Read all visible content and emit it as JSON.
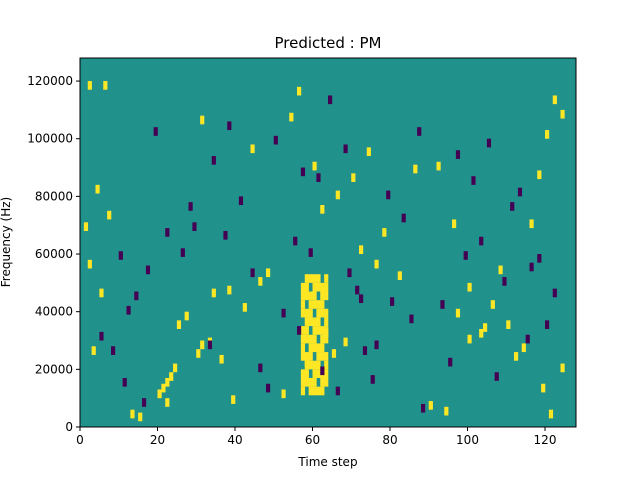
{
  "chart_data": {
    "type": "heatmap",
    "title": "Predicted : PM",
    "xlabel": "Time step",
    "ylabel": "Frequency (Hz)",
    "xlim": [
      0,
      128
    ],
    "ylim": [
      0,
      128000
    ],
    "xticks": [
      0,
      20,
      40,
      60,
      80,
      100,
      120
    ],
    "yticks": [
      0,
      20000,
      40000,
      60000,
      80000,
      100000,
      120000
    ],
    "colormap": "viridis",
    "grid": false,
    "colors": {
      "background": "#21918c",
      "high": "#fde725",
      "low": "#440154"
    },
    "grid_size": [
      128,
      128
    ],
    "cells_high": [
      [
        2,
        119
      ],
      [
        6,
        119
      ],
      [
        44,
        97
      ],
      [
        4,
        83
      ],
      [
        7,
        74
      ],
      [
        1,
        70
      ],
      [
        2,
        57
      ],
      [
        5,
        47
      ],
      [
        3,
        27
      ],
      [
        13,
        5
      ],
      [
        15,
        4
      ],
      [
        22,
        9
      ],
      [
        25,
        36
      ],
      [
        27,
        39
      ],
      [
        31,
        107
      ],
      [
        34,
        47
      ],
      [
        38,
        48
      ],
      [
        42,
        42
      ],
      [
        46,
        51
      ],
      [
        48,
        54
      ],
      [
        54,
        108
      ],
      [
        56,
        117
      ],
      [
        60,
        91
      ],
      [
        62,
        76
      ],
      [
        66,
        81
      ],
      [
        70,
        87
      ],
      [
        76,
        57
      ],
      [
        78,
        68
      ],
      [
        86,
        90
      ],
      [
        92,
        91
      ],
      [
        96,
        71
      ],
      [
        100,
        49
      ],
      [
        104,
        35
      ],
      [
        108,
        55
      ],
      [
        112,
        25
      ],
      [
        116,
        71
      ],
      [
        118,
        88
      ],
      [
        120,
        102
      ],
      [
        122,
        114
      ],
      [
        124,
        109
      ],
      [
        20,
        12
      ],
      [
        21,
        14
      ],
      [
        22,
        16
      ],
      [
        23,
        18
      ],
      [
        24,
        21
      ],
      [
        30,
        26
      ],
      [
        31,
        29
      ],
      [
        33,
        30
      ],
      [
        36,
        24
      ],
      [
        39,
        10
      ],
      [
        52,
        12
      ],
      [
        58,
        23
      ],
      [
        60,
        28
      ],
      [
        63,
        33
      ],
      [
        65,
        26
      ],
      [
        68,
        30
      ],
      [
        72,
        62
      ],
      [
        74,
        96
      ],
      [
        82,
        53
      ],
      [
        90,
        8
      ],
      [
        94,
        6
      ],
      [
        97,
        40
      ],
      [
        100,
        31
      ],
      [
        103,
        33
      ],
      [
        106,
        43
      ],
      [
        110,
        36
      ],
      [
        114,
        28
      ],
      [
        119,
        14
      ],
      [
        121,
        5
      ],
      [
        124,
        21
      ]
    ],
    "cells_low": [
      [
        5,
        32
      ],
      [
        8,
        27
      ],
      [
        11,
        16
      ],
      [
        12,
        41
      ],
      [
        14,
        46
      ],
      [
        17,
        55
      ],
      [
        22,
        68
      ],
      [
        28,
        77
      ],
      [
        34,
        93
      ],
      [
        38,
        105
      ],
      [
        41,
        79
      ],
      [
        44,
        54
      ],
      [
        46,
        21
      ],
      [
        48,
        14
      ],
      [
        52,
        40
      ],
      [
        55,
        65
      ],
      [
        57,
        89
      ],
      [
        61,
        87
      ],
      [
        64,
        114
      ],
      [
        68,
        97
      ],
      [
        71,
        48
      ],
      [
        73,
        27
      ],
      [
        75,
        17
      ],
      [
        79,
        81
      ],
      [
        83,
        73
      ],
      [
        85,
        38
      ],
      [
        88,
        7
      ],
      [
        93,
        43
      ],
      [
        95,
        23
      ],
      [
        99,
        60
      ],
      [
        101,
        86
      ],
      [
        105,
        99
      ],
      [
        107,
        18
      ],
      [
        109,
        51
      ],
      [
        111,
        77
      ],
      [
        113,
        82
      ],
      [
        115,
        31
      ],
      [
        118,
        59
      ],
      [
        120,
        36
      ],
      [
        122,
        47
      ],
      [
        10,
        60
      ],
      [
        16,
        9
      ],
      [
        19,
        103
      ],
      [
        26,
        61
      ],
      [
        29,
        70
      ],
      [
        33,
        29
      ],
      [
        37,
        67
      ],
      [
        50,
        100
      ],
      [
        56,
        34
      ],
      [
        59,
        61
      ],
      [
        62,
        20
      ],
      [
        66,
        13
      ],
      [
        69,
        54
      ],
      [
        72,
        45
      ],
      [
        76,
        29
      ],
      [
        80,
        44
      ],
      [
        87,
        103
      ],
      [
        97,
        95
      ],
      [
        103,
        65
      ],
      [
        116,
        56
      ]
    ],
    "band_high": {
      "x": [
        57,
        63
      ],
      "rows": [
        13,
        53
      ]
    }
  }
}
